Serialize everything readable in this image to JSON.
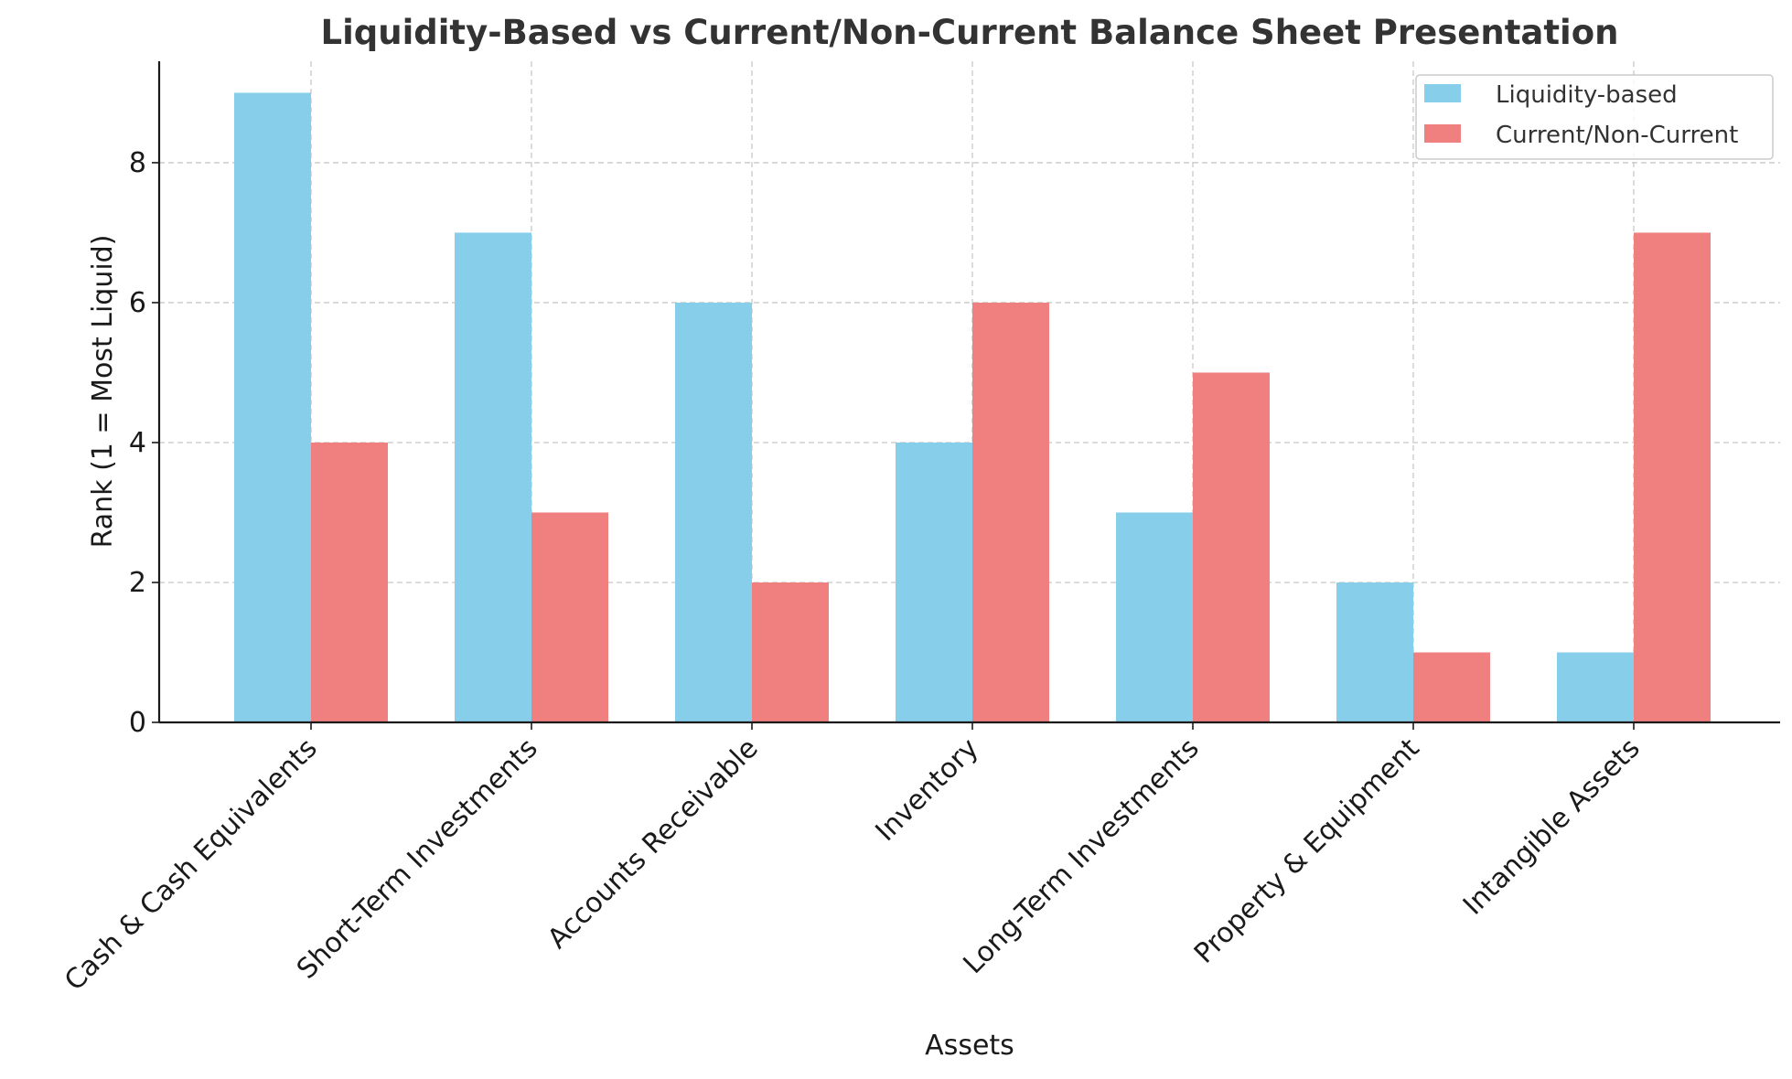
{
  "colors": {
    "liquidity": "#87CEEB",
    "current_noncurrent": "#F08080"
  },
  "chart_data": {
    "type": "bar",
    "title": "Liquidity-Based vs Current/Non-Current Balance Sheet Presentation",
    "xlabel": "Assets",
    "ylabel": "Rank (1 = Most Liquid)",
    "categories": [
      "Cash & Cash Equivalents",
      "Short-Term Investments",
      "Accounts Receivable",
      "Inventory",
      "Long-Term Investments",
      "Property & Equipment",
      "Intangible Assets"
    ],
    "series": [
      {
        "name": "Liquidity-based",
        "values": [
          9,
          7,
          6,
          4,
          3,
          2,
          1
        ],
        "color": "#87CEEB"
      },
      {
        "name": "Current/Non-Current",
        "values": [
          4,
          3,
          2,
          6,
          5,
          1,
          7
        ],
        "color": "#F08080"
      }
    ],
    "ylim": [
      0,
      9.45
    ],
    "yticks": [
      0,
      2,
      4,
      6,
      8
    ],
    "grid": true,
    "legend": "top-right"
  }
}
